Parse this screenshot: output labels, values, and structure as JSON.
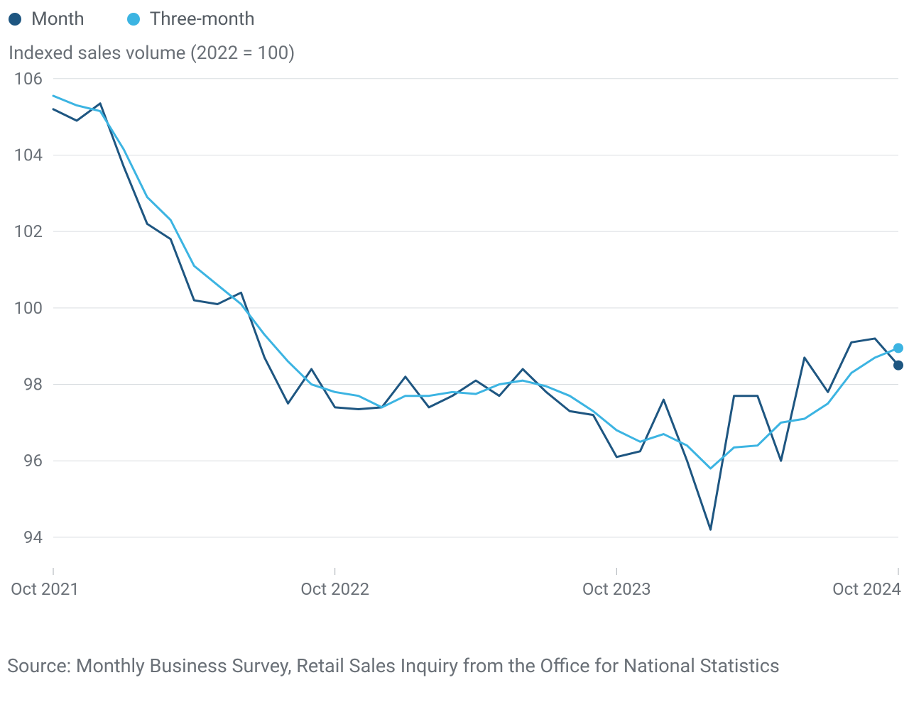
{
  "chart": {
    "type": "line",
    "y_title": "Indexed sales volume (2022 = 100)",
    "legend": [
      {
        "label": "Month",
        "color": "#1e5681"
      },
      {
        "label": "Three-month",
        "color": "#3cb4e2"
      }
    ],
    "colors": {
      "background": "#ffffff",
      "grid": "#d9dde0",
      "axis_text": "#6a7077",
      "tick": "#a9afb5"
    },
    "font": {
      "tick_size": 24,
      "title_size": 26,
      "legend_size": 26,
      "source_size": 27
    },
    "line_width": 3,
    "end_marker_radius": 7,
    "ylim": [
      93.2,
      106.2
    ],
    "y_ticks": [
      94,
      96,
      98,
      100,
      102,
      104,
      106
    ],
    "x_ticks": [
      {
        "idx": 0,
        "label": "Oct 2021",
        "anchor": "start"
      },
      {
        "idx": 12,
        "label": "Oct 2022",
        "anchor": "middle"
      },
      {
        "idx": 24,
        "label": "Oct 2023",
        "anchor": "middle"
      },
      {
        "idx": 36,
        "label": "Oct 2024",
        "anchor": "end"
      }
    ],
    "n_points": 37,
    "series": {
      "month": {
        "color": "#1e5681",
        "values": [
          105.2,
          104.9,
          105.35,
          103.7,
          102.2,
          101.8,
          100.2,
          100.1,
          100.4,
          98.7,
          97.5,
          98.4,
          97.4,
          97.35,
          97.4,
          98.2,
          97.4,
          97.7,
          98.1,
          97.7,
          98.4,
          97.8,
          97.3,
          97.2,
          96.1,
          96.25,
          97.6,
          96.0,
          94.2,
          97.7,
          97.7,
          96.0,
          98.7,
          97.8,
          99.1,
          99.2,
          98.5
        ]
      },
      "three_month": {
        "color": "#3cb4e2",
        "values": [
          105.55,
          105.3,
          105.15,
          104.15,
          102.9,
          102.3,
          101.1,
          100.6,
          100.1,
          99.3,
          98.6,
          98.0,
          97.8,
          97.7,
          97.4,
          97.7,
          97.7,
          97.8,
          97.75,
          98.0,
          98.1,
          97.95,
          97.7,
          97.3,
          96.8,
          96.5,
          96.7,
          96.4,
          95.8,
          96.35,
          96.4,
          97.0,
          97.1,
          97.5,
          98.3,
          98.7,
          98.95
        ]
      }
    }
  },
  "source": "Source: Monthly Business Survey, Retail Sales Inquiry from the Office for National Statistics"
}
